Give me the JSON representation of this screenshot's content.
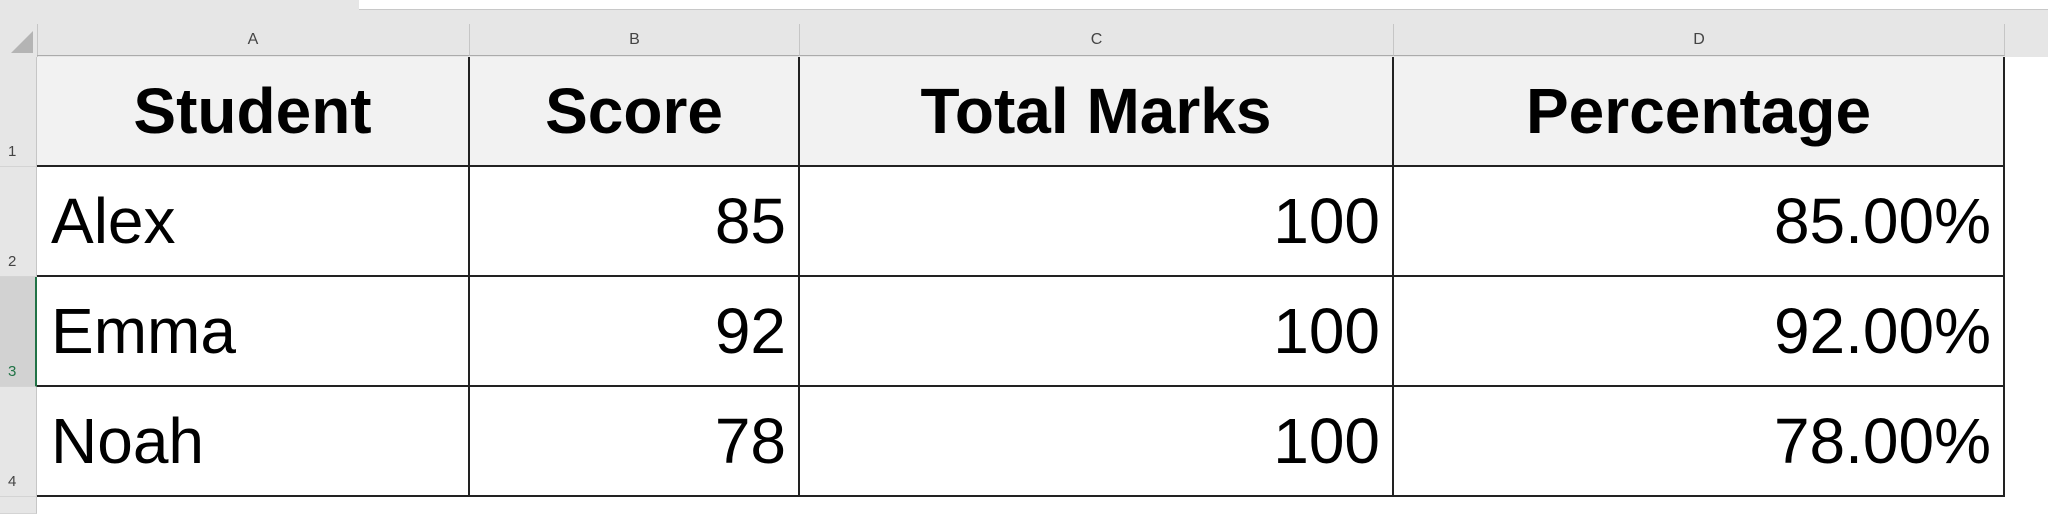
{
  "columns": [
    "A",
    "B",
    "C",
    "D"
  ],
  "rows": [
    "1",
    "2",
    "3",
    "4"
  ],
  "selected_row": "3",
  "table": {
    "headers": [
      "Student",
      "Score",
      "Total Marks",
      "Percentage"
    ],
    "data": [
      [
        "Alex",
        "85",
        "100",
        "85.00%"
      ],
      [
        "Emma",
        "92",
        "100",
        "92.00%"
      ],
      [
        "Noah",
        "78",
        "100",
        "78.00%"
      ]
    ]
  }
}
